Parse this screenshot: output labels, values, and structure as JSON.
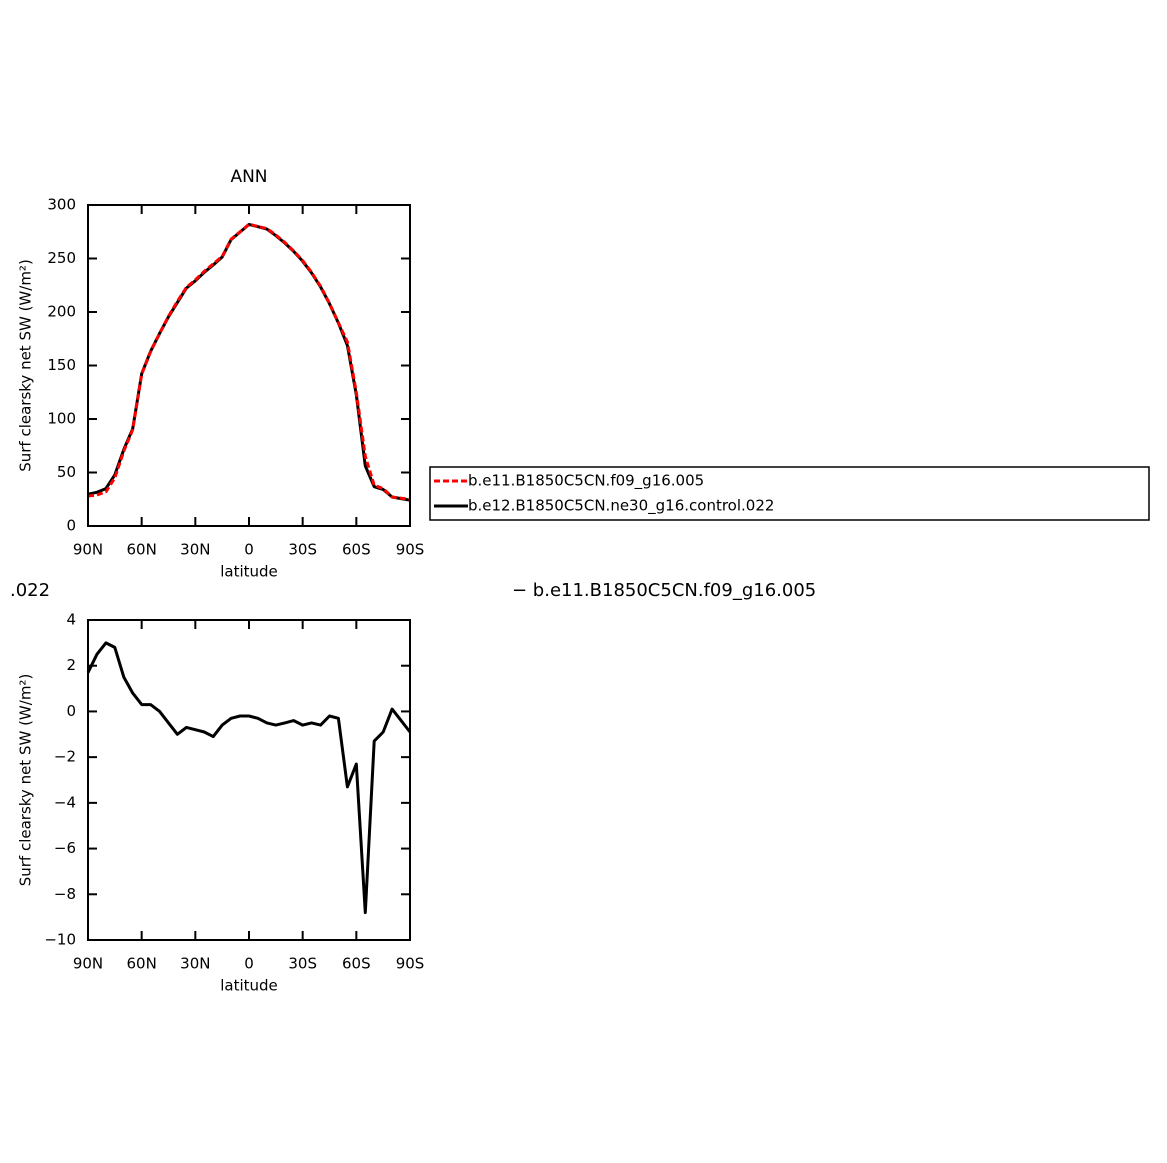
{
  "chart_data": [
    {
      "type": "line",
      "title": "ANN",
      "x_label": "latitude",
      "y_label": "Surf clearsky net SW (W/m²)",
      "x": [
        90,
        85,
        80,
        75,
        70,
        65,
        60,
        55,
        50,
        45,
        40,
        35,
        30,
        25,
        20,
        15,
        10,
        5,
        0,
        -5,
        -10,
        -15,
        -20,
        -25,
        -30,
        -35,
        -40,
        -45,
        -50,
        -55,
        -60,
        -65,
        -70,
        -75,
        -80,
        -85,
        -90
      ],
      "xlim": [
        90,
        -90
      ],
      "xticks": [
        {
          "value": 90,
          "label": "90N"
        },
        {
          "value": 60,
          "label": "60N"
        },
        {
          "value": 30,
          "label": "30N"
        },
        0,
        {
          "value": -30,
          "label": "30S"
        },
        {
          "value": -60,
          "label": "60S"
        },
        {
          "value": -90,
          "label": "90S"
        }
      ],
      "ylim": [
        0,
        300
      ],
      "yticks": [
        0,
        50,
        100,
        150,
        200,
        250,
        300
      ],
      "series": [
        {
          "name": "b.e11.B1850C5CN.f09_g16.005",
          "color": "#ff0000",
          "dash": "dashed",
          "values": [
            28,
            29,
            32,
            45,
            70,
            90,
            142,
            163,
            180,
            196,
            210,
            223,
            230,
            238,
            245,
            252,
            268,
            275,
            282,
            280,
            278,
            272,
            265,
            257,
            248,
            237,
            224,
            208,
            190,
            172,
            125,
            65,
            38,
            35,
            27,
            26,
            25
          ]
        },
        {
          "name": "b.e12.B1850C5CN.ne30_g16.control.022",
          "color": "#000000",
          "dash": "solid",
          "values": [
            29.7,
            31.5,
            35,
            47.8,
            71.5,
            90.8,
            142.3,
            163.3,
            180,
            195.5,
            209,
            222.3,
            229.2,
            237.1,
            243.9,
            251.4,
            267.7,
            274.8,
            281.8,
            279.7,
            277.5,
            271.4,
            264.5,
            256.6,
            247.4,
            236.5,
            223.4,
            207.8,
            189.7,
            168.7,
            122.7,
            56.2,
            36.7,
            34.1,
            27.1,
            25.6,
            24.1
          ]
        }
      ],
      "legend": "right"
    },
    {
      "type": "line",
      "x_label": "latitude",
      "y_label": "Surf clearsky net SW (W/m²)",
      "x": [
        90,
        85,
        80,
        75,
        70,
        65,
        60,
        55,
        50,
        45,
        40,
        35,
        30,
        25,
        20,
        15,
        10,
        5,
        0,
        -5,
        -10,
        -15,
        -20,
        -25,
        -30,
        -35,
        -40,
        -45,
        -50,
        -55,
        -60,
        -65,
        -70,
        -75,
        -80,
        -85,
        -90
      ],
      "xlim": [
        90,
        -90
      ],
      "xticks": [
        {
          "value": 90,
          "label": "90N"
        },
        {
          "value": 60,
          "label": "60N"
        },
        {
          "value": 30,
          "label": "30N"
        },
        0,
        {
          "value": -30,
          "label": "30S"
        },
        {
          "value": -60,
          "label": "60S"
        },
        {
          "value": -90,
          "label": "90S"
        }
      ],
      "ylim": [
        -10,
        4
      ],
      "yticks": [
        {
          "value": -10,
          "label": "−10"
        },
        {
          "value": -8,
          "label": "−8"
        },
        {
          "value": -6,
          "label": "−6"
        },
        {
          "value": -4,
          "label": "−4"
        },
        {
          "value": -2,
          "label": "−2"
        },
        0,
        2,
        4
      ],
      "series": [
        {
          "color": "#000000",
          "dash": "solid",
          "values": [
            1.7,
            2.5,
            3,
            2.8,
            1.5,
            0.8,
            0.3,
            0.3,
            0,
            -0.5,
            -1,
            -0.7,
            -0.8,
            -0.9,
            -1.1,
            -0.6,
            -0.3,
            -0.2,
            -0.2,
            -0.3,
            -0.5,
            -0.6,
            -0.5,
            -0.4,
            -0.6,
            -0.5,
            -0.6,
            -0.2,
            -0.3,
            -3.3,
            -2.3,
            -8.8,
            -1.3,
            -0.9,
            0.1,
            -0.4,
            -0.9
          ]
        }
      ]
    }
  ],
  "annotations": [
    ".022",
    "− b.e11.B1850C5CN.f09_g16.005"
  ]
}
